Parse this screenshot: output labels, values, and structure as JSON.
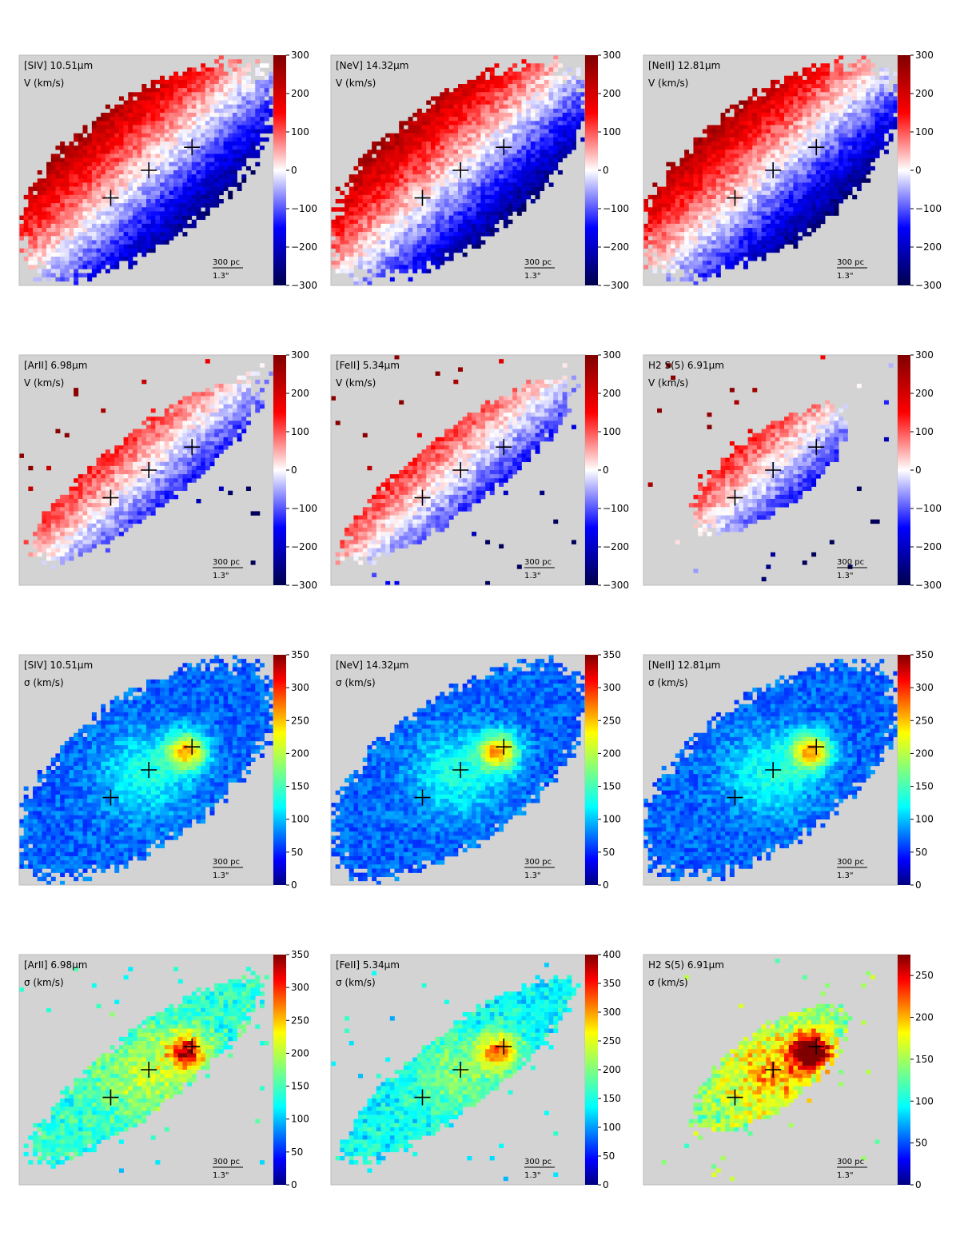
{
  "colors": {
    "panel_bg": "#d3d3d3",
    "cmap_velocity": "seismic",
    "cmap_dispersion": "jet",
    "marker": "#000000"
  },
  "scalebar": {
    "physical": "300 pc",
    "angular": "1.3\""
  },
  "chart_data": [
    {
      "type": "heatmap",
      "row": 0,
      "col": 0,
      "line": "[SIV]  10.51μm",
      "quantity": "V (km/s)",
      "cmap": "seismic",
      "clim": [
        -300,
        300
      ],
      "ticks": [
        "300",
        "200",
        "100",
        "0",
        "−100",
        "−200",
        "−300"
      ],
      "shape": "wide",
      "bipolar": true,
      "markers": [
        "nucleus",
        "northeast-knot",
        "southwest-knot"
      ]
    },
    {
      "type": "heatmap",
      "row": 0,
      "col": 1,
      "line": "[NeV]  14.32μm",
      "quantity": "V (km/s)",
      "cmap": "seismic",
      "clim": [
        -300,
        300
      ],
      "ticks": [
        "300",
        "200",
        "100",
        "0",
        "−100",
        "−200",
        "−300"
      ],
      "shape": "wide",
      "bipolar": true
    },
    {
      "type": "heatmap",
      "row": 0,
      "col": 2,
      "line": "[NeII]  12.81μm",
      "quantity": "V (km/s)",
      "cmap": "seismic",
      "clim": [
        -300,
        300
      ],
      "ticks": [
        "300",
        "200",
        "100",
        "0",
        "−100",
        "−200",
        "−300"
      ],
      "shape": "wide",
      "bipolar": true
    },
    {
      "type": "heatmap",
      "row": 1,
      "col": 0,
      "line": "[ArII]  6.98μm",
      "quantity": "V (km/s)",
      "cmap": "seismic",
      "clim": [
        -300,
        300
      ],
      "ticks": [
        "300",
        "200",
        "100",
        "0",
        "−100",
        "−200",
        "−300"
      ],
      "shape": "narrow",
      "bipolar": true
    },
    {
      "type": "heatmap",
      "row": 1,
      "col": 1,
      "line": "[FeII]  5.34μm",
      "quantity": "V (km/s)",
      "cmap": "seismic",
      "clim": [
        -300,
        300
      ],
      "ticks": [
        "300",
        "200",
        "100",
        "0",
        "−100",
        "−200",
        "−300"
      ],
      "shape": "narrow",
      "bipolar": true
    },
    {
      "type": "heatmap",
      "row": 1,
      "col": 2,
      "line": "H2 S(5)  6.91μm",
      "quantity": "V (km/s)",
      "cmap": "seismic",
      "clim": [
        -300,
        300
      ],
      "ticks": [
        "300",
        "200",
        "100",
        "0",
        "−100",
        "−200",
        "−300"
      ],
      "shape": "compact",
      "bipolar": true
    },
    {
      "type": "heatmap",
      "row": 2,
      "col": 0,
      "line": "[SIV]  10.51μm",
      "quantity": "σ (km/s)",
      "cmap": "jet",
      "clim": [
        0,
        350
      ],
      "ticks": [
        "350",
        "300",
        "250",
        "200",
        "150",
        "100",
        "50",
        "0"
      ],
      "shape": "wide",
      "bipolar": false
    },
    {
      "type": "heatmap",
      "row": 2,
      "col": 1,
      "line": "[NeV]  14.32μm",
      "quantity": "σ (km/s)",
      "cmap": "jet",
      "clim": [
        0,
        350
      ],
      "ticks": [
        "350",
        "300",
        "250",
        "200",
        "150",
        "100",
        "50",
        "0"
      ],
      "shape": "wide",
      "bipolar": false
    },
    {
      "type": "heatmap",
      "row": 2,
      "col": 2,
      "line": "[NeII]  12.81μm",
      "quantity": "σ (km/s)",
      "cmap": "jet",
      "clim": [
        0,
        350
      ],
      "ticks": [
        "350",
        "300",
        "250",
        "200",
        "150",
        "100",
        "50",
        "0"
      ],
      "shape": "wide",
      "bipolar": false
    },
    {
      "type": "heatmap",
      "row": 3,
      "col": 0,
      "line": "[ArII]  6.98μm",
      "quantity": "σ (km/s)",
      "cmap": "jet",
      "clim": [
        0,
        350
      ],
      "ticks": [
        "350",
        "300",
        "250",
        "200",
        "150",
        "100",
        "50",
        "0"
      ],
      "shape": "narrow",
      "bipolar": false
    },
    {
      "type": "heatmap",
      "row": 3,
      "col": 1,
      "line": "[FeII]  5.34μm",
      "quantity": "σ (km/s)",
      "cmap": "jet",
      "clim": [
        0,
        400
      ],
      "ticks": [
        "400",
        "350",
        "300",
        "250",
        "200",
        "150",
        "100",
        "50",
        "0"
      ],
      "shape": "narrow",
      "bipolar": false
    },
    {
      "type": "heatmap",
      "row": 3,
      "col": 2,
      "line": "H2 S(5)  6.91μm",
      "quantity": "σ (km/s)",
      "cmap": "jet",
      "clim": [
        0,
        275
      ],
      "ticks": [
        "250",
        "200",
        "150",
        "100",
        "50",
        "0"
      ],
      "shape": "compact",
      "bipolar": false
    }
  ]
}
